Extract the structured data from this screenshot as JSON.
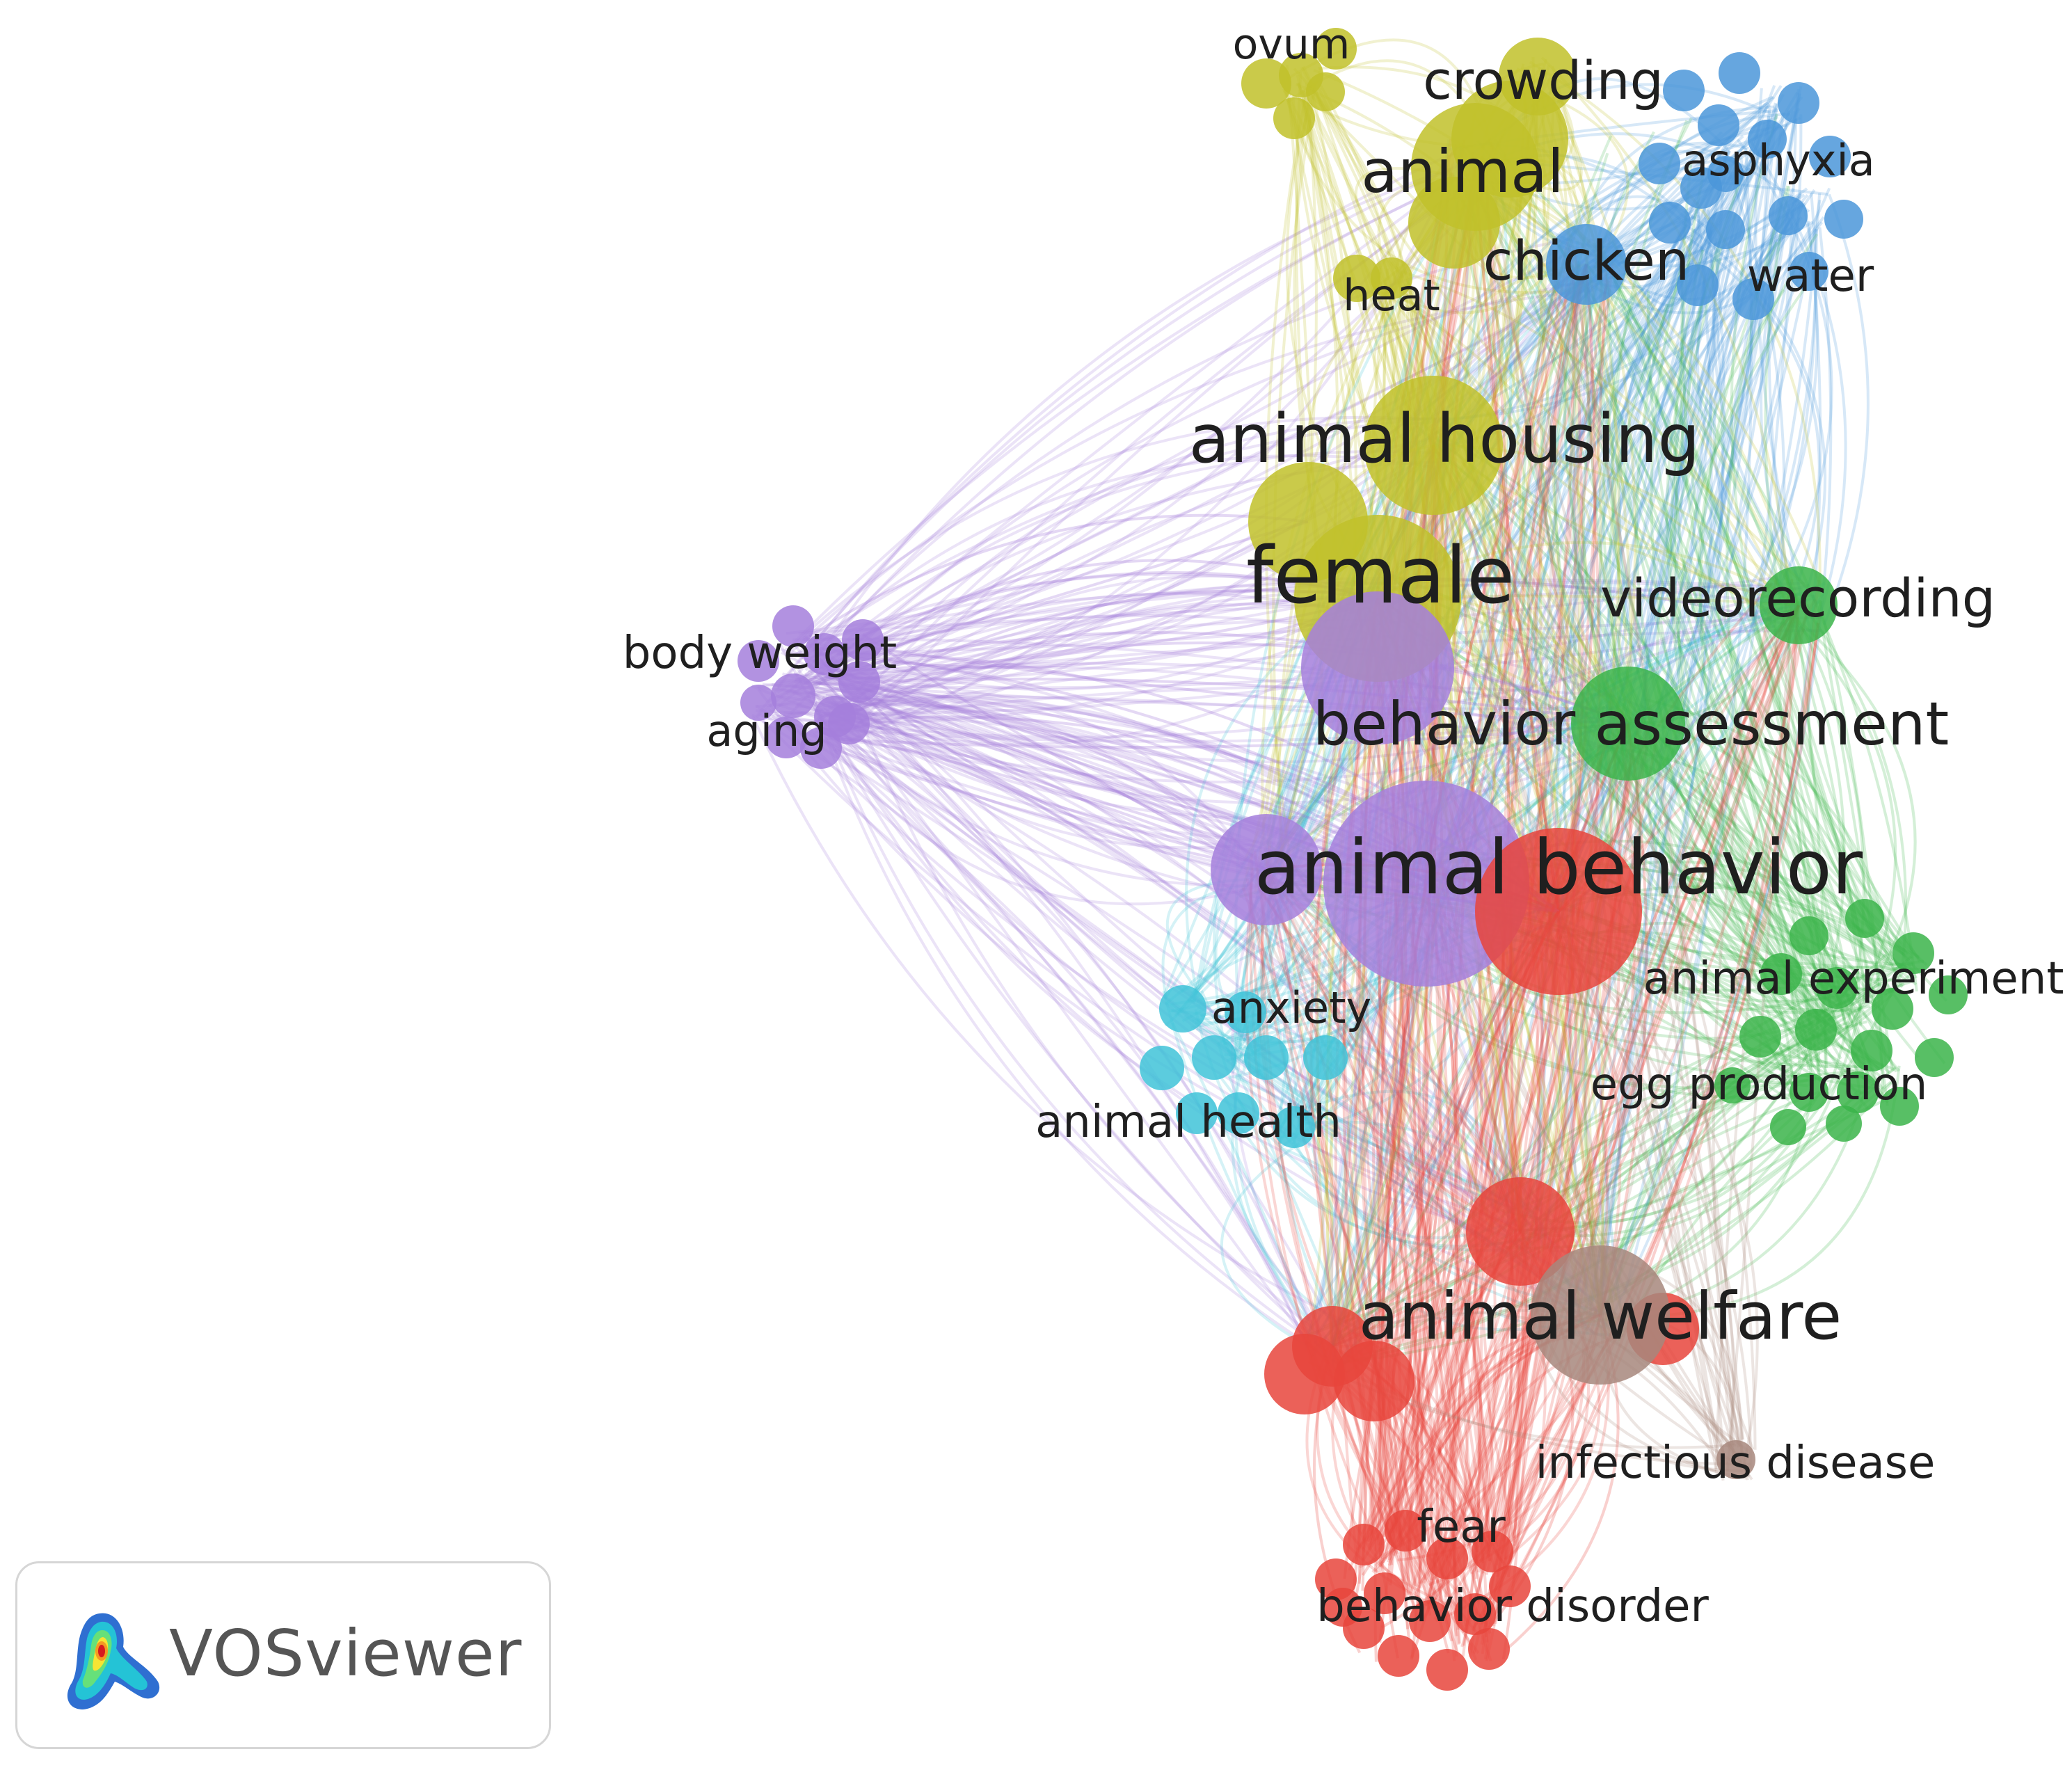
{
  "app": {
    "name": "VOSviewer"
  },
  "colors": {
    "red": "#e8453c",
    "green": "#3bb44a",
    "blue": "#4b97d9",
    "yellow": "#c1c12a",
    "purple": "#a57fdc",
    "cyan": "#3fc3d8",
    "brown": "#a7877d"
  },
  "labels": {
    "ovum": "ovum",
    "crowding": "crowding",
    "animal": "animal",
    "asphyxia": "asphyxia",
    "chicken": "chicken",
    "water": "water",
    "heat": "heat",
    "animal_housing": "animal housing",
    "female": "female",
    "videorecording": "videorecording",
    "body_weight": "body weight",
    "aging": "aging",
    "behavior_assessment": "behavior assessment",
    "animal_behavior": "animal behavior",
    "animal_experiment": "animal experiment",
    "anxiety": "anxiety",
    "egg_production": "egg production",
    "animal_health": "animal health",
    "animal_welfare": "animal welfare",
    "infectious_disease": "infectious disease",
    "fear": "fear",
    "behavior_disorder": "behavior disorder"
  }
}
